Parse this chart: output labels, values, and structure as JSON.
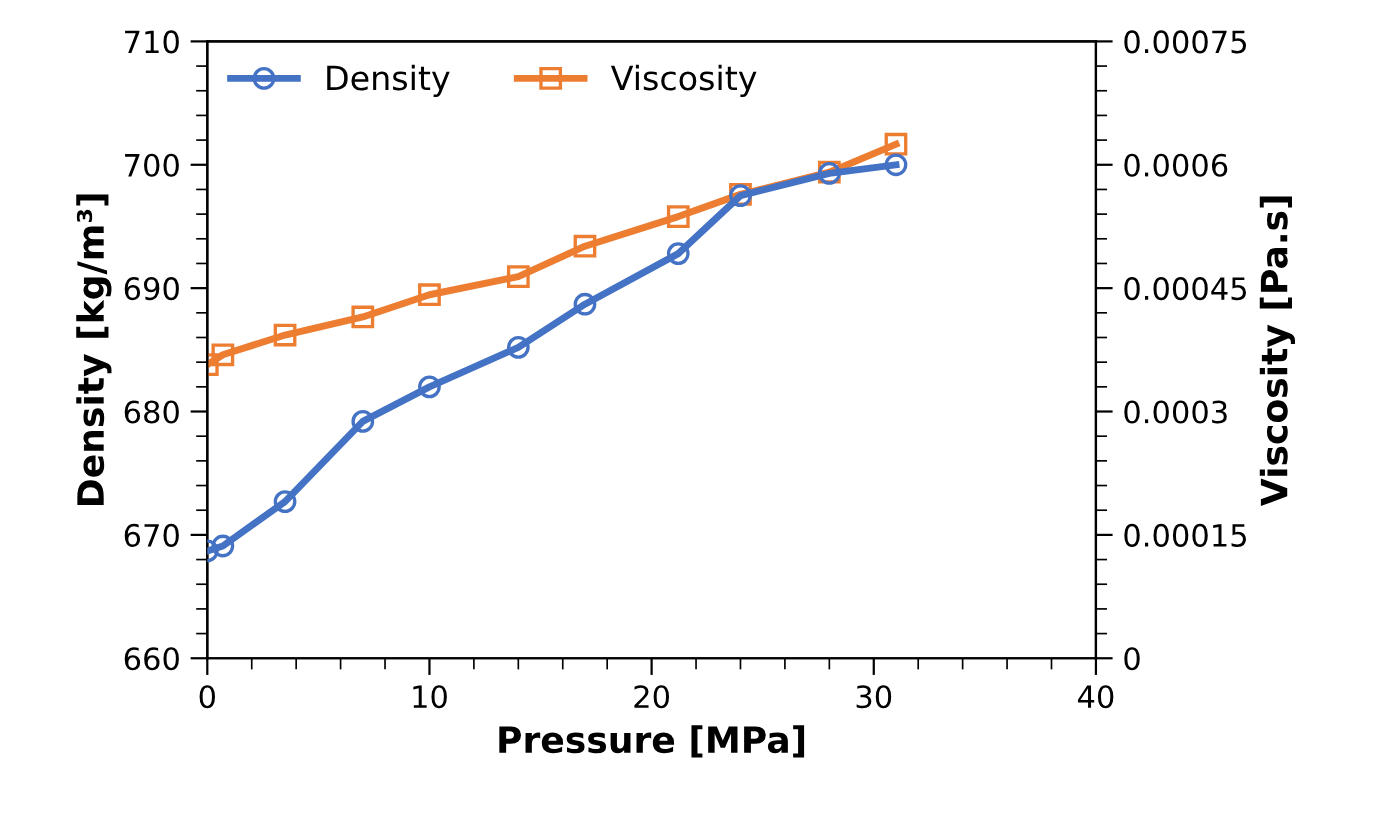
{
  "chart_data": {
    "type": "line",
    "xlabel": "Pressure [MPa]",
    "ylabel": "Density [kg/m³]",
    "y2label": "Viscosity [Pa.s]",
    "xlim": [
      0,
      40
    ],
    "xticks": [
      0,
      10,
      20,
      30,
      40
    ],
    "ylim": [
      660,
      710
    ],
    "yticks": [
      660,
      670,
      680,
      690,
      700,
      710
    ],
    "y2lim": [
      0,
      0.00075
    ],
    "y2ticks": [
      {
        "value": 0,
        "label": "0"
      },
      {
        "value": 0.00015,
        "label": "0.00015"
      },
      {
        "value": 0.0003,
        "label": "0.0003"
      },
      {
        "value": 0.00045,
        "label": "0.00045"
      },
      {
        "value": 0.0006,
        "label": "0.0006"
      },
      {
        "value": 0.00075,
        "label": "0.00075"
      }
    ],
    "grid": false,
    "legend": "top left",
    "series": [
      {
        "name": "Density",
        "color": "#4472c4",
        "marker": "circle",
        "x": [
          0,
          0.7,
          3.5,
          7,
          10,
          14,
          17,
          21.2,
          24,
          28,
          31
        ],
        "values": [
          668.7,
          669.1,
          672.7,
          679.2,
          682,
          685.2,
          688.7,
          692.8,
          697.5,
          699.3,
          700
        ]
      },
      {
        "name": "Viscosity",
        "color": "#ed7d31",
        "marker": "square",
        "axis": "y2",
        "x": [
          0,
          0.7,
          3.5,
          7,
          10,
          14,
          17,
          21.2,
          24,
          28,
          31
        ],
        "values": [
          0.000357,
          0.000369,
          0.000393,
          0.000415,
          0.000442,
          0.000464,
          0.000501,
          0.000537,
          0.000564,
          0.000591,
          0.000625
        ]
      }
    ]
  }
}
